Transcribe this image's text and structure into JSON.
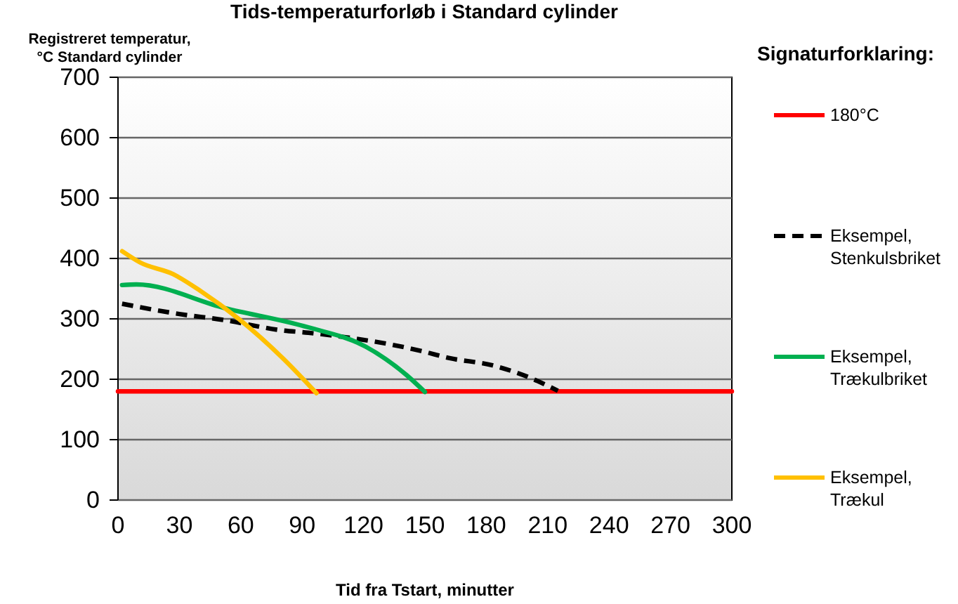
{
  "chart_data": {
    "type": "line",
    "title": "Tids-temperaturforløb i Standard cylinder",
    "ylabel": "Registreret temperatur, °C Standard cylinder",
    "xlabel": "Tid fra Tstart,  minutter",
    "legend_title": "Signaturforklaring:",
    "xlim": [
      0,
      300
    ],
    "xticks": [
      0,
      30,
      60,
      90,
      120,
      150,
      180,
      210,
      240,
      270,
      300
    ],
    "ylim": [
      0,
      700
    ],
    "yticks": [
      0,
      100,
      200,
      300,
      400,
      500,
      600,
      700
    ],
    "grid": "y",
    "legend": "right",
    "marker": "none",
    "series": [
      {
        "name": "180°C",
        "color": "#ff0000",
        "x": [
          0,
          300
        ],
        "values": [
          180,
          180
        ]
      },
      {
        "name": "Eksempel, Stenkulsbriket",
        "color": "#000000",
        "line_style": "dashed",
        "x": [
          2,
          30,
          52,
          80,
          93,
          148,
          162,
          183,
          198,
          215
        ],
        "values": [
          325,
          308,
          298,
          281,
          277,
          247,
          235,
          223,
          207,
          181
        ]
      },
      {
        "name": "Eksempel, Trækulbriket",
        "color": "#00b050",
        "x": [
          2,
          9,
          52,
          93,
          121,
          141,
          150
        ],
        "values": [
          356,
          357,
          318,
          286,
          254,
          207,
          179
        ]
      },
      {
        "name": "Eksempel, Trækul",
        "color": "#ffc000",
        "x": [
          2,
          11,
          27,
          40,
          59,
          82,
          97
        ],
        "values": [
          412,
          393,
          374,
          347,
          300,
          230,
          177
        ]
      }
    ]
  }
}
